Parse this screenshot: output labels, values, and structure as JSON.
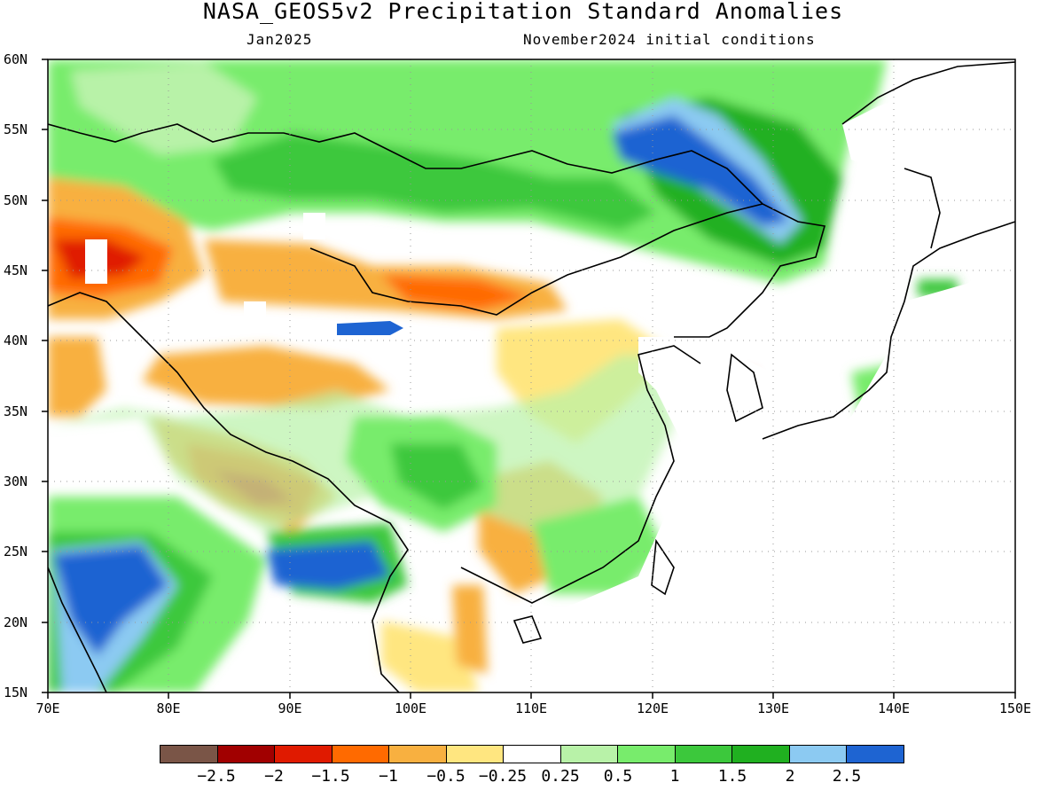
{
  "header": {
    "title": "NASA_GEOS5v2 Precipitation Standard Anomalies",
    "target_month": "Jan2025",
    "initial_conditions": "November2024 initial conditions"
  },
  "axes": {
    "lat_labels": [
      "60N",
      "55N",
      "50N",
      "45N",
      "40N",
      "35N",
      "30N",
      "25N",
      "20N",
      "15N"
    ],
    "lon_labels": [
      "70E",
      "80E",
      "90E",
      "100E",
      "110E",
      "120E",
      "130E",
      "140E",
      "150E"
    ],
    "lon_range": [
      70,
      150
    ],
    "lat_range": [
      15,
      60
    ]
  },
  "colorbar": {
    "labels": [
      "−2.5",
      "−2",
      "−1.5",
      "−1",
      "−0.5",
      "−0.25",
      "0.25",
      "0.5",
      "1",
      "1.5",
      "2",
      "2.5"
    ],
    "colors": [
      "#7a5547",
      "#a10000",
      "#e01a00",
      "#ff6a00",
      "#f8b040",
      "#ffe680",
      "#ffffff",
      "#b8f2a8",
      "#78ec6c",
      "#3cc83c",
      "#20b020",
      "#8ccaf2",
      "#1e64d2"
    ]
  },
  "legend_classes": {
    "below_m2_5": "#7a5547",
    "m2_5_m2": "#a10000",
    "m2_m1_5": "#e01a00",
    "m1_5_m1": "#ff6a00",
    "m1_m0_5": "#f8b040",
    "m0_5_m0_25": "#ffe680",
    "neutral": "#ffffff",
    "p0_25_p0_5": "#b8f2a8",
    "p0_5_p1": "#78ec6c",
    "p1_p1_5": "#3cc83c",
    "p1_5_p2": "#20b020",
    "p2_p2_5": "#8ccaf2",
    "above_p2_5": "#1e64d2"
  }
}
